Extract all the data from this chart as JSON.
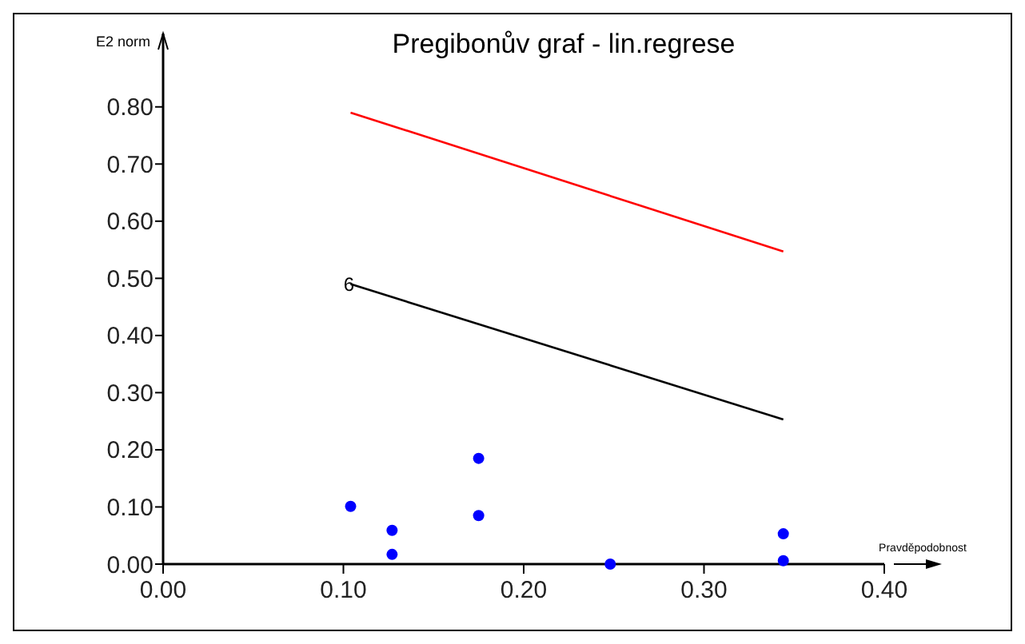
{
  "chart_data": {
    "type": "scatter",
    "title": "Pregibonův graf - lin.regrese",
    "ylabel": "E2 norm",
    "xlabel": "Pravděpodobnost",
    "xlim": [
      0,
      0.4
    ],
    "ylim": [
      0,
      0.85
    ],
    "xticks": [
      {
        "value": 0,
        "label": "0.00"
      },
      {
        "value": 0.1,
        "label": "0.10"
      },
      {
        "value": 0.2,
        "label": "0.20"
      },
      {
        "value": 0.3,
        "label": "0.30"
      },
      {
        "value": 0.4,
        "label": "0.40"
      }
    ],
    "yticks": [
      {
        "value": 0,
        "label": "0.00"
      },
      {
        "value": 0.1,
        "label": "0.10"
      },
      {
        "value": 0.2,
        "label": "0.20"
      },
      {
        "value": 0.3,
        "label": "0.30"
      },
      {
        "value": 0.4,
        "label": "0.40"
      },
      {
        "value": 0.5,
        "label": "0.50"
      },
      {
        "value": 0.6,
        "label": "0.60"
      },
      {
        "value": 0.7,
        "label": "0.70"
      },
      {
        "value": 0.8,
        "label": "0.80"
      }
    ],
    "grid": false,
    "series": [
      {
        "marker": "circle",
        "color": "#0000ff",
        "x": [
          0.104,
          0.127,
          0.127,
          0.175,
          0.175,
          0.248,
          0.344,
          0.344
        ],
        "values": [
          0.101,
          0.059,
          0.017,
          0.185,
          0.085,
          0.0,
          0.053,
          0.006
        ]
      },
      {
        "type": "line",
        "color": "#ff0000",
        "x": [
          0.104,
          0.344
        ],
        "values": [
          0.79,
          0.547
        ]
      },
      {
        "type": "line",
        "color": "#000000",
        "x": [
          0.104,
          0.344
        ],
        "values": [
          0.49,
          0.253
        ]
      }
    ],
    "annotations": [
      {
        "text": "6",
        "x": 0.104,
        "y": 0.49
      }
    ]
  }
}
